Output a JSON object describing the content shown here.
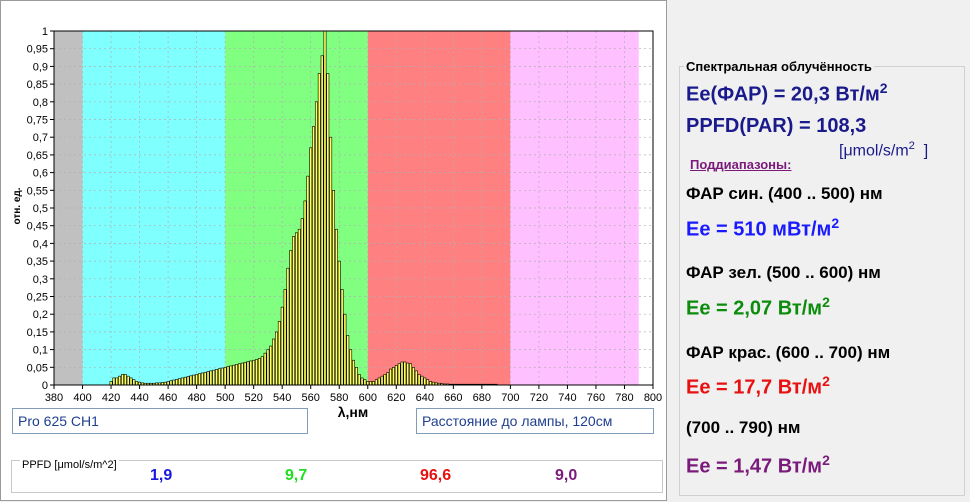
{
  "chart_data": {
    "type": "bar",
    "ylabel": "отн. ед.",
    "xlabel": "λ,нм",
    "xlim": [
      380,
      790
    ],
    "ylim": [
      0,
      1
    ],
    "x_ticks": [
      "380",
      "400",
      "420",
      "440",
      "460",
      "480",
      "500",
      "520",
      "540",
      "560",
      "580",
      "600",
      "620",
      "640",
      "660",
      "680",
      "700",
      "720",
      "740",
      "760",
      "780",
      "800"
    ],
    "y_ticks": [
      "0",
      "0,05",
      "0,1",
      "0,15",
      "0,2",
      "0,25",
      "0,3",
      "0,35",
      "0,4",
      "0,45",
      "0,5",
      "0,55",
      "0,6",
      "0,65",
      "0,7",
      "0,75",
      "0,8",
      "0,85",
      "0,9",
      "0,95",
      "1"
    ],
    "bands": [
      {
        "from": 380,
        "to": 400,
        "color": "#c0c0c0"
      },
      {
        "from": 400,
        "to": 500,
        "color": "#80ffff"
      },
      {
        "from": 500,
        "to": 600,
        "color": "#80ff80"
      },
      {
        "from": 600,
        "to": 700,
        "color": "#ff8080"
      },
      {
        "from": 700,
        "to": 790,
        "color": "#ffc0ff"
      }
    ],
    "bar_color": "#ffff60",
    "x_start": 380,
    "x_step": 2,
    "values": [
      0,
      0,
      0,
      0,
      0,
      0,
      0,
      0,
      0,
      0,
      0,
      0,
      0,
      0,
      0,
      0,
      0,
      0,
      0,
      0,
      0.01,
      0.02,
      0.02,
      0.025,
      0.03,
      0.03,
      0.025,
      0.02,
      0.015,
      0.01,
      0.008,
      0.006,
      0.005,
      0.005,
      0.005,
      0.005,
      0.006,
      0.006,
      0.007,
      0.008,
      0.01,
      0.012,
      0.014,
      0.016,
      0.018,
      0.02,
      0.022,
      0.024,
      0.026,
      0.028,
      0.03,
      0.032,
      0.034,
      0.036,
      0.038,
      0.04,
      0.042,
      0.044,
      0.046,
      0.048,
      0.05,
      0.052,
      0.054,
      0.056,
      0.058,
      0.06,
      0.062,
      0.064,
      0.066,
      0.068,
      0.07,
      0.072,
      0.075,
      0.08,
      0.09,
      0.1,
      0.11,
      0.13,
      0.15,
      0.18,
      0.22,
      0.27,
      0.33,
      0.38,
      0.42,
      0.43,
      0.44,
      0.47,
      0.52,
      0.59,
      0.67,
      0.73,
      0.8,
      0.88,
      0.93,
      1,
      0.88,
      0.7,
      0.55,
      0.44,
      0.35,
      0.27,
      0.2,
      0.14,
      0.1,
      0.07,
      0.05,
      0.03,
      0.02,
      0.015,
      0.01,
      0.01,
      0.01,
      0.015,
      0.02,
      0.025,
      0.03,
      0.035,
      0.045,
      0.05,
      0.055,
      0.06,
      0.065,
      0.065,
      0.062,
      0.06,
      0.05,
      0.04,
      0.03,
      0.025,
      0.02,
      0.015,
      0.01,
      0.008,
      0.006,
      0.005,
      0.004,
      0.003,
      0.003,
      0.002,
      0.002,
      0.002,
      0.001,
      0.001,
      0.001,
      0.001,
      0.001,
      0.001,
      0.001,
      0.001,
      0.001,
      0.001,
      0.001,
      0.001,
      0.001,
      0.001,
      0,
      0,
      0,
      0,
      0,
      0,
      0,
      0,
      0,
      0,
      0,
      0,
      0,
      0,
      0,
      0,
      0,
      0,
      0,
      0,
      0,
      0,
      0,
      0,
      0,
      0
    ]
  },
  "lamp_name": "Pro 625 CH1",
  "distance_text": "Расстояние до лампы,  120см",
  "ppfd": {
    "label": "PPFD [μmol/s/m^2]",
    "blue": "1,9",
    "green": "9,7",
    "red": "96,6",
    "far_red": "9,0"
  },
  "panel": {
    "title": "Спектральная облучённость",
    "ee_par": "Ee(ФАР) = 20,3 Вт/м",
    "ppfd_par": "PPFD(PAR) = 108,3",
    "ppfd_unit": "[μmol/s/m",
    "ppfd_unit_close": "]",
    "sup2": "2",
    "subranges": "Поддиапазоны:",
    "blue_range": "ФАР син. (400 .. 500) нм",
    "blue_ee": "Ee = 510 мВт/м",
    "green_range": "ФАР зел. (500 .. 600) нм",
    "green_ee": "Ee = 2,07 Вт/м",
    "red_range": "ФАР крас. (600 .. 700) нм",
    "red_ee": "Ee = 17,7 Вт/м",
    "fr_range": "(700 .. 790) нм",
    "fr_ee": "Ee = 1,47 Вт/м"
  },
  "colors": {
    "navy": "#1a1a8c",
    "blue": "#1a1aff",
    "green": "#0c8c0c",
    "red": "#e81010",
    "purple": "#7a1a7a",
    "ppfd_blue": "#1a1adc",
    "ppfd_green": "#20e020"
  }
}
